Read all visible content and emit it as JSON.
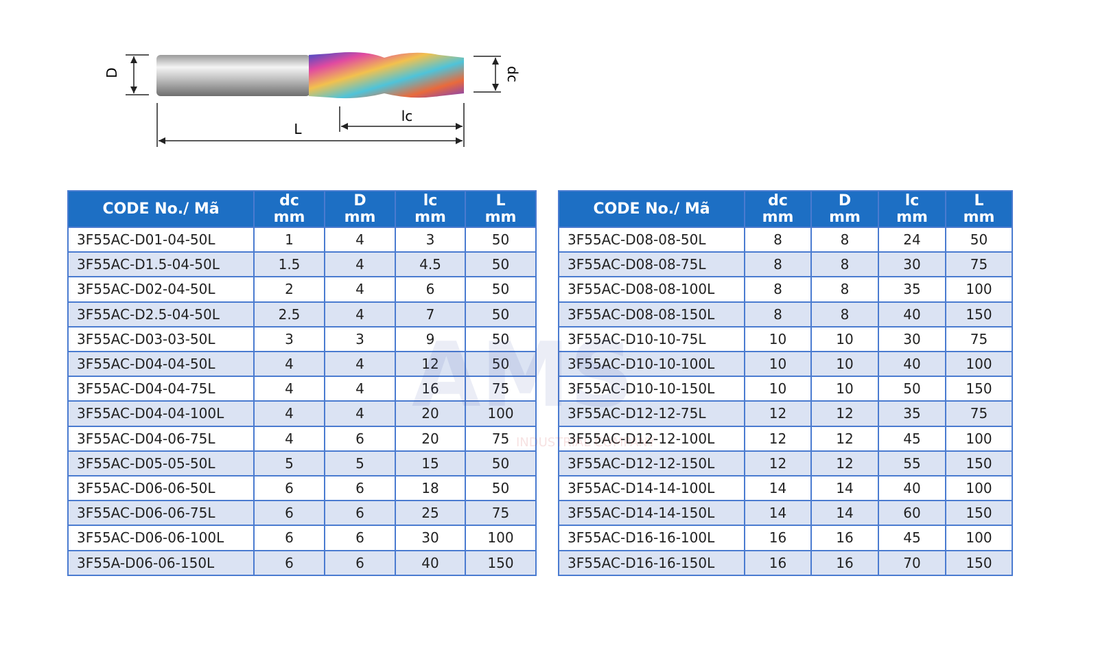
{
  "diagram": {
    "labels": {
      "D": "D",
      "dc": "dc",
      "lc": "lc",
      "L": "L"
    }
  },
  "watermark": {
    "title": "AMS",
    "subtitle": "INDUSTRIAL COMPANY"
  },
  "tables": [
    {
      "header": [
        [
          "CODE No./ Mã"
        ],
        [
          "dc",
          "mm"
        ],
        [
          "D",
          "mm"
        ],
        [
          "lc",
          "mm"
        ],
        [
          "L",
          "mm"
        ]
      ],
      "rows": [
        [
          "3F55AC-D01-04-50L",
          1,
          4,
          3,
          50
        ],
        [
          "3F55AC-D1.5-04-50L",
          1.5,
          4,
          4.5,
          50
        ],
        [
          "3F55AC-D02-04-50L",
          2,
          4,
          6,
          50
        ],
        [
          "3F55AC-D2.5-04-50L",
          2.5,
          4,
          7,
          50
        ],
        [
          "3F55AC-D03-03-50L",
          3,
          3,
          9,
          50
        ],
        [
          "3F55AC-D04-04-50L",
          4,
          4,
          12,
          50
        ],
        [
          "3F55AC-D04-04-75L",
          4,
          4,
          16,
          75
        ],
        [
          "3F55AC-D04-04-100L",
          4,
          4,
          20,
          100
        ],
        [
          "3F55AC-D04-06-75L",
          4,
          6,
          20,
          75
        ],
        [
          "3F55AC-D05-05-50L",
          5,
          5,
          15,
          50
        ],
        [
          "3F55AC-D06-06-50L",
          6,
          6,
          18,
          50
        ],
        [
          "3F55AC-D06-06-75L",
          6,
          6,
          25,
          75
        ],
        [
          "3F55AC-D06-06-100L",
          6,
          6,
          30,
          100
        ],
        [
          "3F55A-D06-06-150L",
          6,
          6,
          40,
          150
        ]
      ]
    },
    {
      "header": [
        [
          "CODE No./ Mã"
        ],
        [
          "dc",
          "mm"
        ],
        [
          "D",
          "mm"
        ],
        [
          "lc",
          "mm"
        ],
        [
          "L",
          "mm"
        ]
      ],
      "rows": [
        [
          "3F55AC-D08-08-50L",
          8,
          8,
          24,
          50
        ],
        [
          "3F55AC-D08-08-75L",
          8,
          8,
          30,
          75
        ],
        [
          "3F55AC-D08-08-100L",
          8,
          8,
          35,
          100
        ],
        [
          "3F55AC-D08-08-150L",
          8,
          8,
          40,
          150
        ],
        [
          "3F55AC-D10-10-75L",
          10,
          10,
          30,
          75
        ],
        [
          "3F55AC-D10-10-100L",
          10,
          10,
          40,
          100
        ],
        [
          "3F55AC-D10-10-150L",
          10,
          10,
          50,
          150
        ],
        [
          "3F55AC-D12-12-75L",
          12,
          12,
          35,
          75
        ],
        [
          "3F55AC-D12-12-100L",
          12,
          12,
          45,
          100
        ],
        [
          "3F55AC-D12-12-150L",
          12,
          12,
          55,
          150
        ],
        [
          "3F55AC-D14-14-100L",
          14,
          14,
          40,
          100
        ],
        [
          "3F55AC-D14-14-150L",
          14,
          14,
          60,
          150
        ],
        [
          "3F55AC-D16-16-100L",
          16,
          16,
          45,
          100
        ],
        [
          "3F55AC-D16-16-150L",
          16,
          16,
          70,
          150
        ]
      ]
    }
  ]
}
